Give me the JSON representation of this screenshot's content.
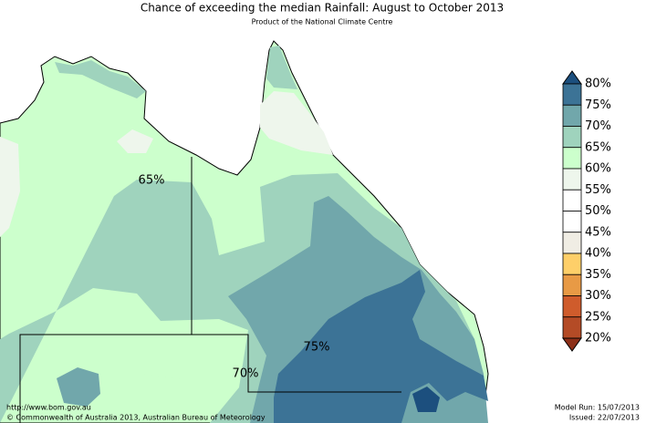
{
  "header": {
    "title": "Chance of exceeding the median Rainfall: August to October 2013",
    "subtitle": "Product of the National Climate Centre"
  },
  "map": {
    "contour_labels": [
      "65%",
      "75%",
      "70%"
    ]
  },
  "legend": {
    "labels": [
      "80%",
      "75%",
      "70%",
      "65%",
      "60%",
      "55%",
      "50%",
      "45%",
      "40%",
      "35%",
      "30%",
      "25%",
      "20%"
    ],
    "colors": [
      "#1c4f7e",
      "#3c7396",
      "#71a7ab",
      "#9fd3bd",
      "#ccffcc",
      "#eef6ec",
      "#ffffff",
      "#ffffff",
      "#f0ede4",
      "#fecf69",
      "#e89a45",
      "#cf5c2c",
      "#b44b26",
      "#8c2f18"
    ]
  },
  "footer": {
    "url": "http://www.bom.gov.au",
    "copyright": "©  Commonwealth of Australia 2013, Australian Bureau of Meteorology",
    "model_run": "Model Run: 15/07/2013",
    "issued": "Issued: 22/07/2013"
  }
}
